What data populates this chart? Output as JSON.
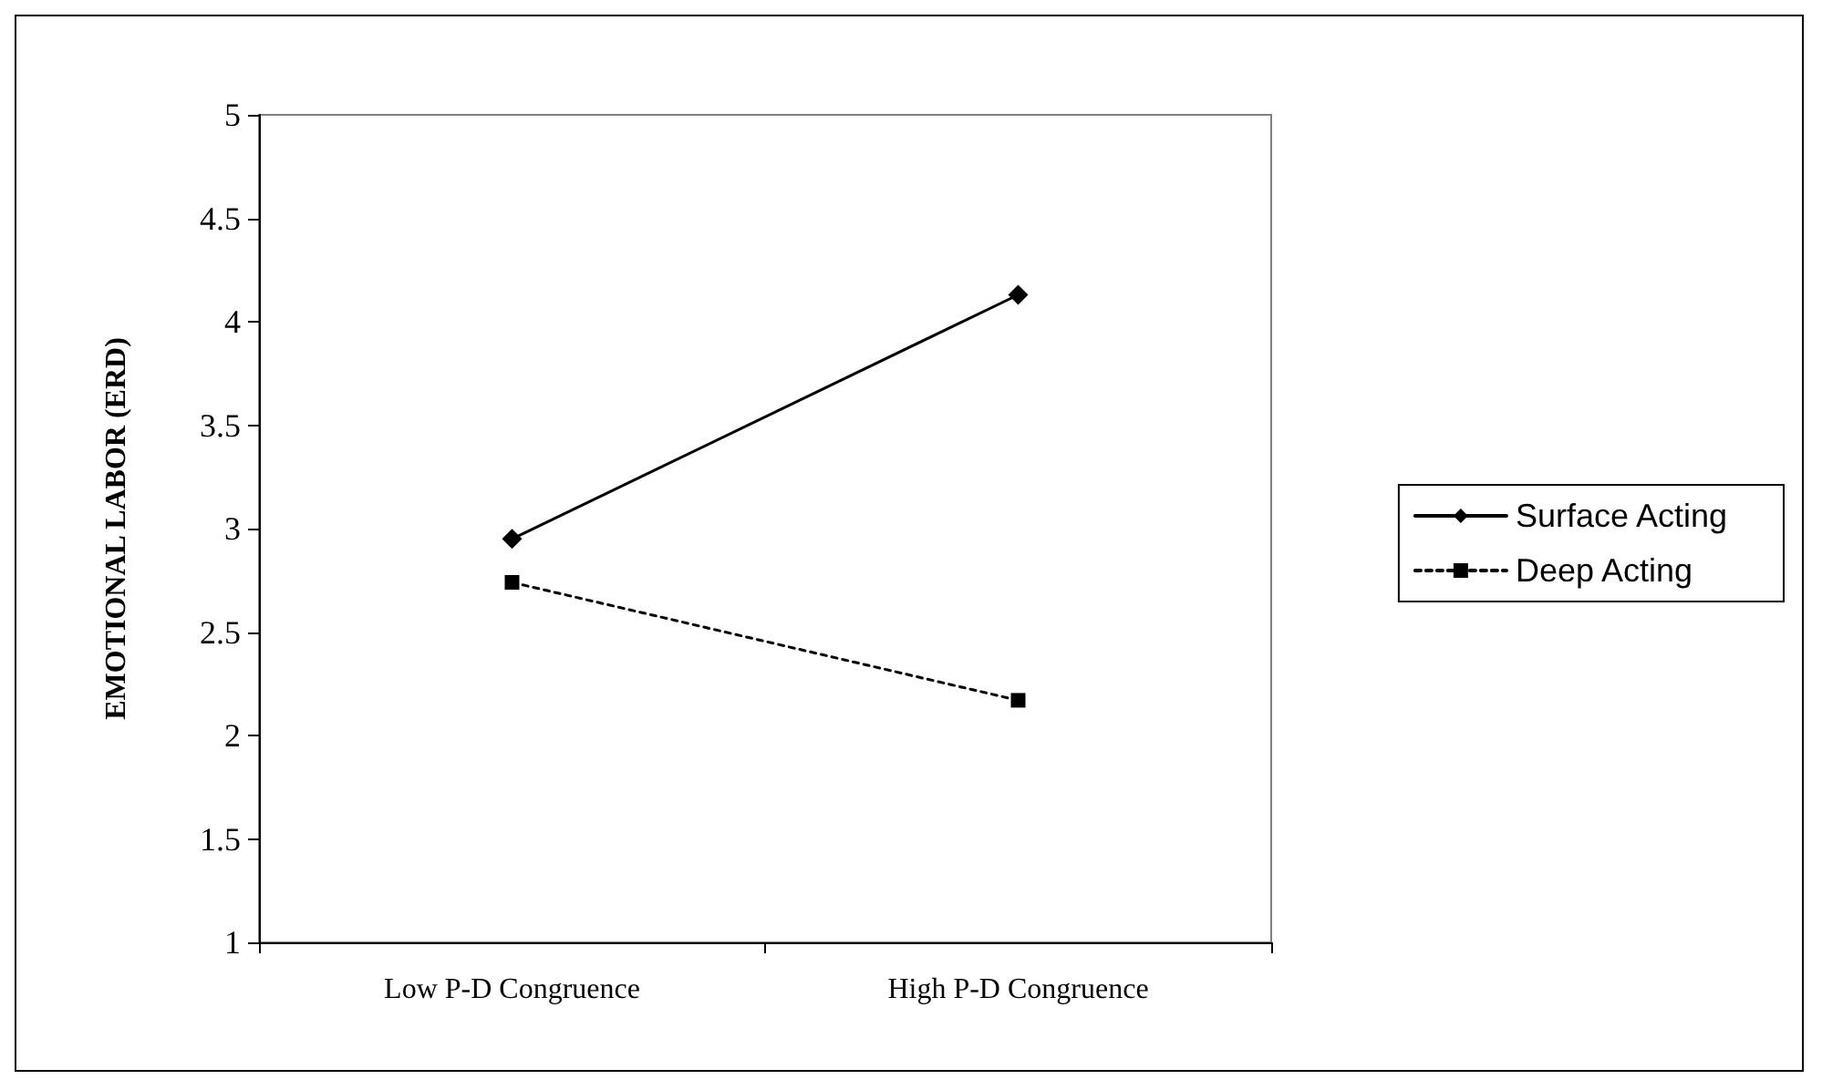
{
  "chart_data": {
    "type": "line",
    "ylabel": "EMOTIONAL LABOR (ERD)",
    "categories": [
      "Low P-D Congruence",
      "High P-D Congruence"
    ],
    "series": [
      {
        "name": "Surface Acting",
        "color": "#000000",
        "values": [
          2.95,
          4.13
        ],
        "marker": "diamond",
        "line_style": "solid"
      },
      {
        "name": "Deep Acting",
        "color": "#000000",
        "values": [
          2.74,
          2.17
        ],
        "marker": "square",
        "line_style": "dotted"
      }
    ],
    "ylim": [
      1,
      5
    ],
    "yticks": [
      1,
      1.5,
      2,
      2.5,
      3,
      3.5,
      4,
      4.5,
      5
    ],
    "grid": false,
    "legend": "right"
  }
}
